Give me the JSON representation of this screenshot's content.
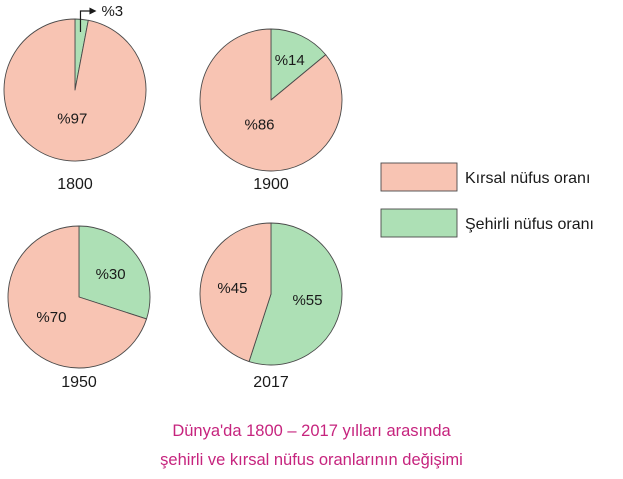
{
  "chart_data": {
    "type": "pie",
    "series_names": [
      "Kırsal nüfus oranı",
      "Şehirli nüfus oranı"
    ],
    "colors": {
      "rural": "#f8c4b3",
      "urban": "#ade0b5",
      "outline": "#4a4a4a"
    },
    "charts": [
      {
        "title": "1800",
        "slices": [
          {
            "key": "rural",
            "value": 97,
            "label": "%97"
          },
          {
            "key": "urban",
            "value": 3,
            "label": "%3"
          }
        ]
      },
      {
        "title": "1900",
        "slices": [
          {
            "key": "rural",
            "value": 86,
            "label": "%86"
          },
          {
            "key": "urban",
            "value": 14,
            "label": "%14"
          }
        ]
      },
      {
        "title": "1950",
        "slices": [
          {
            "key": "rural",
            "value": 70,
            "label": "%70"
          },
          {
            "key": "urban",
            "value": 30,
            "label": "%30"
          }
        ]
      },
      {
        "title": "2017",
        "slices": [
          {
            "key": "rural",
            "value": 45,
            "label": "%45"
          },
          {
            "key": "urban",
            "value": 55,
            "label": "%55"
          }
        ]
      }
    ],
    "legend": [
      {
        "key": "rural",
        "label": "Kırsal nüfus oranı"
      },
      {
        "key": "urban",
        "label": "Şehirli nüfus oranı"
      }
    ],
    "legend_position": "right"
  },
  "caption": {
    "line1": "Dünya'da 1800 – 2017 yılları arasında",
    "line2": "şehirli ve kırsal nüfus oranlarının değişimi"
  }
}
